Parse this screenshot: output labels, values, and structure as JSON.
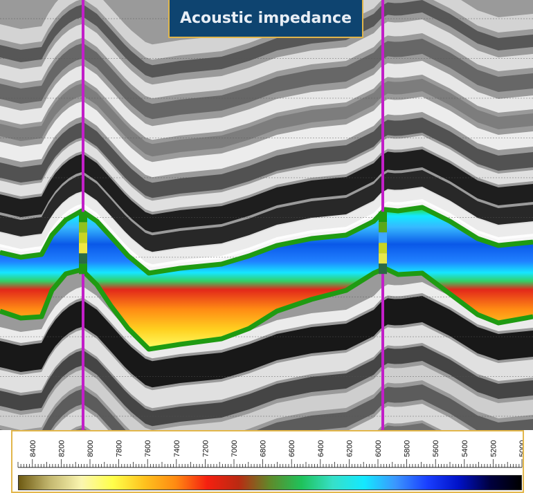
{
  "title": "Acoustic impedance",
  "colorbar": {
    "ticks": [
      "8400",
      "8200",
      "8000",
      "7800",
      "7600",
      "7400",
      "7200",
      "7000",
      "6800",
      "6600",
      "6400",
      "6200",
      "6000",
      "5800",
      "5600",
      "5400",
      "5200",
      "5000"
    ],
    "max": 8500,
    "min": 5000
  },
  "colors": {
    "title_bg": "#0e4470",
    "title_border": "#e2b64a",
    "well_line": "#c21fc8",
    "horizon": "#1f9b12",
    "colormap": [
      "#6e5a12",
      "#c4b870",
      "#fbf6b0",
      "#ffff4a",
      "#ffc21e",
      "#ff8a12",
      "#f52010",
      "#ba2a12",
      "#5f8a2a",
      "#1fc25a",
      "#36e0c8",
      "#14e8ff",
      "#3b96ff",
      "#1a3fff",
      "#0012c8",
      "#000040",
      "#000000"
    ]
  }
}
